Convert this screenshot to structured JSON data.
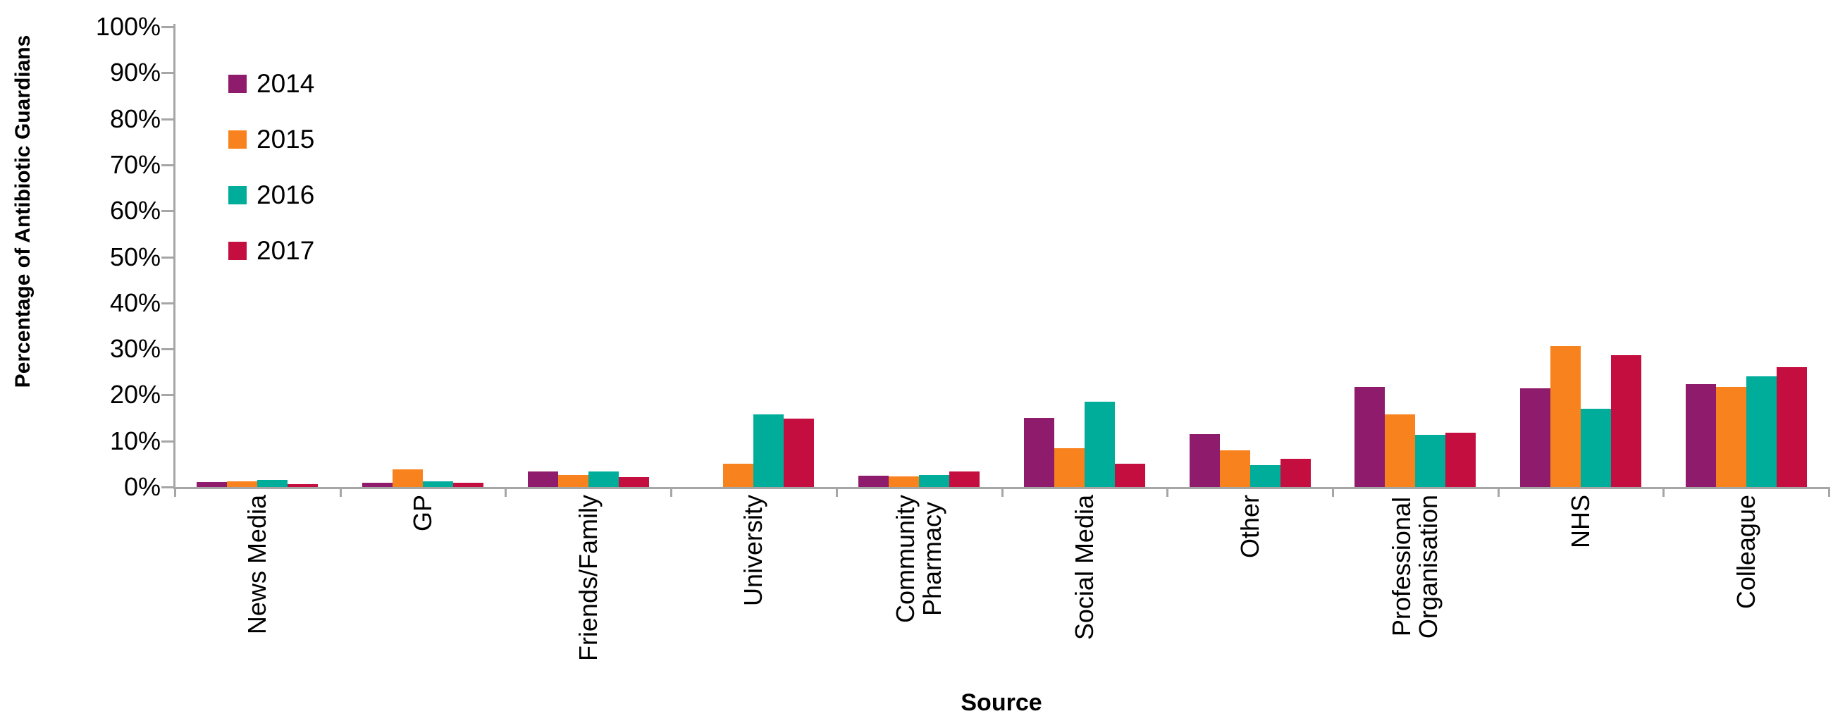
{
  "chart_data": {
    "type": "bar",
    "title": "",
    "xlabel": "Source",
    "ylabel": "Percentage of Antibiotic Guardians",
    "ylim": [
      0,
      100
    ],
    "ytick_step": 10,
    "ytick_suffix": "%",
    "grid": false,
    "legend_position": "upper-left-inside",
    "categories": [
      "News Media",
      "GP",
      "Friends/Family",
      "University",
      "Community\nPharmacy",
      "Social Media",
      "Other",
      "Professional\nOrganisation",
      "NHS",
      "Colleague"
    ],
    "series": [
      {
        "name": "2014",
        "color": "#8E1B6B",
        "values": [
          1.0,
          0.9,
          3.3,
          0,
          2.4,
          15.0,
          11.5,
          21.8,
          21.4,
          22.4
        ]
      },
      {
        "name": "2015",
        "color": "#F8821E",
        "values": [
          1.2,
          3.9,
          2.6,
          5.1,
          2.3,
          8.4,
          8.0,
          15.7,
          30.7,
          21.8
        ]
      },
      {
        "name": "2016",
        "color": "#00AD9A",
        "values": [
          1.6,
          1.3,
          3.4,
          15.8,
          2.6,
          18.6,
          4.7,
          11.3,
          17.0,
          24.0
        ]
      },
      {
        "name": "2017",
        "color": "#C40E3F",
        "values": [
          0.6,
          0.9,
          2.1,
          14.9,
          3.4,
          5.1,
          6.1,
          11.8,
          28.7,
          26.0
        ]
      }
    ]
  },
  "colors": {
    "axis_line": "#A6A6A6",
    "text": "#000000",
    "background": "#FFFFFF"
  }
}
